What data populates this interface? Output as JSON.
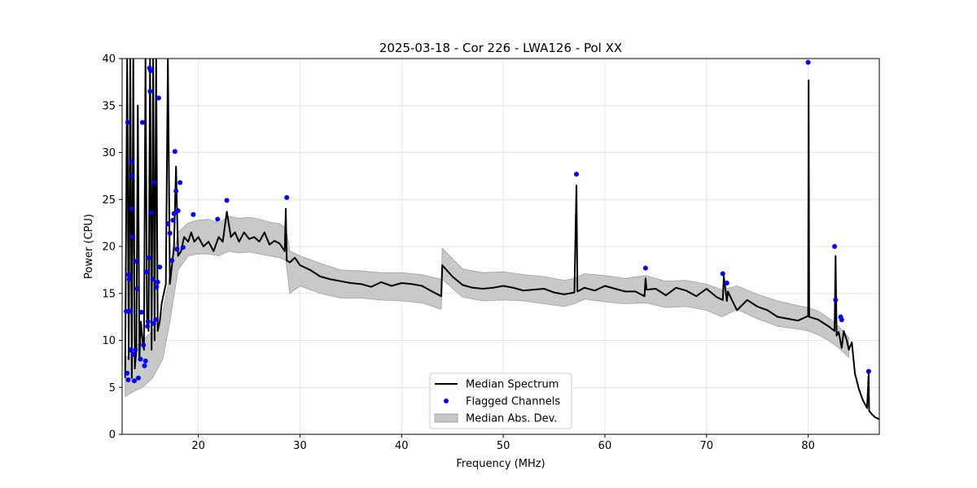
{
  "chart_data": {
    "type": "line",
    "title": "2025-03-18 - Cor 226 - LWA126 - Pol XX",
    "xlabel": "Frequency (MHz)",
    "ylabel": "Power (CPU)",
    "xlim": [
      12.5,
      87.0
    ],
    "ylim": [
      0,
      40
    ],
    "xticks": [
      20,
      30,
      40,
      50,
      60,
      70,
      80
    ],
    "yticks": [
      0,
      5,
      10,
      15,
      20,
      25,
      30,
      35,
      40
    ],
    "grid": true,
    "legend_position": "bottom-center",
    "colors": {
      "median": "#000000",
      "flagged": "#0000ff",
      "mad": "#c8c8c8",
      "mad_edge": "#a0a0a0"
    },
    "series": [
      {
        "name": "Median Spectrum",
        "kind": "line",
        "x": [
          12.8,
          13.0,
          13.15,
          13.3,
          13.45,
          13.6,
          13.75,
          13.9,
          14.05,
          14.2,
          14.35,
          14.5,
          14.65,
          14.8,
          14.95,
          15.1,
          15.25,
          15.4,
          15.55,
          15.7,
          15.85,
          16.0,
          16.2,
          16.4,
          16.6,
          16.8,
          17.0,
          17.2,
          17.4,
          17.6,
          17.8,
          18.0,
          18.3,
          18.6,
          19.0,
          19.3,
          19.6,
          20.0,
          20.5,
          21.0,
          21.5,
          22.0,
          22.4,
          22.8,
          23.2,
          23.6,
          24.0,
          24.5,
          25.0,
          25.5,
          26.0,
          26.5,
          27.0,
          27.5,
          28.0,
          28.5,
          28.6,
          28.7,
          29.0,
          29.5,
          30.0,
          31.0,
          32.0,
          33.0,
          34.0,
          35.0,
          36.0,
          37.0,
          38.0,
          39.0,
          40.0,
          41.0,
          42.0,
          43.0,
          43.9,
          44.0,
          45.0,
          46.0,
          47.0,
          48.0,
          49.0,
          50.0,
          51.0,
          52.0,
          53.0,
          54.0,
          55.0,
          56.0,
          57.0,
          57.2,
          57.3,
          58.0,
          59.0,
          60.0,
          61.0,
          62.0,
          63.0,
          63.9,
          64.0,
          64.1,
          65.0,
          66.0,
          67.0,
          68.0,
          69.0,
          70.0,
          71.0,
          71.6,
          71.7,
          72.0,
          72.1,
          73.0,
          74.0,
          75.0,
          76.0,
          77.0,
          78.0,
          79.0,
          80.0,
          80.05,
          80.1,
          81.0,
          82.0,
          82.6,
          82.7,
          82.8,
          83.0,
          83.3,
          83.5,
          83.8,
          84.0,
          84.3,
          84.6,
          85.0,
          85.4,
          85.8,
          85.95,
          86.0,
          86.3,
          86.6,
          87.0
        ],
        "y": [
          6,
          40,
          8,
          40,
          6,
          40,
          7,
          9,
          35,
          8,
          12,
          10,
          9,
          40,
          12,
          11,
          40,
          9,
          40,
          10,
          40,
          11,
          12,
          14,
          15,
          16,
          40,
          16,
          18,
          20,
          28.5,
          19,
          19.5,
          21,
          20.5,
          21.5,
          20.5,
          21,
          20,
          20.5,
          19.5,
          21,
          20.5,
          23.7,
          21,
          21.5,
          20.5,
          21.5,
          20.8,
          21,
          20.5,
          21.5,
          20.2,
          20.6,
          20.3,
          19.5,
          24,
          18.5,
          18.3,
          18.8,
          18,
          17.5,
          16.8,
          16.5,
          16.3,
          16.1,
          16,
          15.7,
          16.2,
          15.8,
          16.1,
          16,
          15.8,
          15.2,
          14.7,
          18,
          16.8,
          15.9,
          15.6,
          15.5,
          15.6,
          15.8,
          15.6,
          15.3,
          15.4,
          15.5,
          15.1,
          14.9,
          15.1,
          26.5,
          15.2,
          15.6,
          15.3,
          15.8,
          15.5,
          15.2,
          15.2,
          14.7,
          16.6,
          15.4,
          15.5,
          14.8,
          15.6,
          15.3,
          14.7,
          15.5,
          14.6,
          14.3,
          16.8,
          14.2,
          15.2,
          13.2,
          14.3,
          13.6,
          13.2,
          12.5,
          12.3,
          12.1,
          12.6,
          37.7,
          12.5,
          12.2,
          11.5,
          11.0,
          19.0,
          10.5,
          10.9,
          9.2,
          11.0,
          10.0,
          9.0,
          9.8,
          6.5,
          4.8,
          3.6,
          2.8,
          6.5,
          2.5,
          2.1,
          1.8,
          1.6
        ]
      },
      {
        "name": "Median Abs. Dev.",
        "kind": "band",
        "x": [
          12.8,
          13.5,
          14.5,
          15.5,
          16.5,
          17.2,
          18.0,
          19.0,
          20.0,
          21.0,
          22.0,
          23.0,
          24.0,
          25.0,
          26.0,
          27.0,
          28.0,
          28.6,
          29.0,
          30.0,
          32.0,
          34.0,
          36.0,
          38.0,
          40.0,
          42.0,
          43.9,
          44.0,
          46.0,
          48.0,
          50.0,
          52.0,
          54.0,
          56.0,
          57.0,
          58.0,
          60.0,
          62.0,
          64.0,
          66.0,
          68.0,
          70.0,
          71.5,
          73.0,
          75.0,
          77.0,
          79.0,
          80.0,
          81.0,
          82.0,
          83.0,
          84.0
        ],
        "lower": [
          4,
          4.5,
          5,
          6,
          8,
          12,
          17.5,
          19,
          19.2,
          19.2,
          19,
          19.5,
          19.3,
          19.4,
          19.2,
          19,
          18.8,
          18.5,
          15,
          15.8,
          15,
          14.5,
          14.5,
          14.3,
          14.2,
          14,
          13.3,
          16.5,
          14.6,
          14.2,
          14.3,
          14.2,
          13.9,
          13.6,
          13.9,
          14.4,
          14.1,
          13.9,
          14,
          13.5,
          13.6,
          13.2,
          12.5,
          13.3,
          12.3,
          11.5,
          11.2,
          11,
          10.6,
          10,
          9.2,
          8.2
        ],
        "upper": [
          8,
          9,
          10,
          11,
          13,
          17,
          21.5,
          22.5,
          22.8,
          22.9,
          22.5,
          23.2,
          23,
          23.1,
          22.9,
          22.6,
          22.4,
          22,
          19.5,
          19,
          18.2,
          17.5,
          17.4,
          17.2,
          17.2,
          17,
          16.5,
          19.8,
          17.6,
          17.2,
          17.3,
          17,
          16.8,
          16.4,
          16.6,
          17.1,
          16.9,
          16.6,
          16.9,
          16.3,
          16.4,
          16,
          15.4,
          15.8,
          14.9,
          14.2,
          13.7,
          13.5,
          13.1,
          12.4,
          11.5,
          10.3
        ]
      },
      {
        "name": "Flagged Channels",
        "kind": "scatter",
        "x": [
          12.9,
          13.0,
          13.05,
          13.1,
          13.15,
          13.2,
          13.3,
          13.35,
          13.4,
          13.45,
          13.5,
          13.55,
          13.6,
          13.7,
          13.8,
          13.9,
          14.0,
          14.1,
          14.3,
          14.4,
          14.5,
          14.6,
          14.7,
          14.8,
          14.9,
          15.0,
          15.05,
          15.1,
          15.2,
          15.25,
          15.3,
          15.4,
          15.5,
          15.6,
          15.7,
          15.8,
          15.9,
          16.0,
          16.1,
          16.2,
          17.0,
          17.2,
          17.4,
          17.5,
          17.6,
          17.7,
          17.8,
          17.9,
          18.0,
          18.2,
          18.5,
          19.5,
          21.9,
          22.8,
          28.7,
          57.2,
          64.0,
          71.6,
          72.0,
          80.0,
          82.6,
          82.7,
          83.2,
          83.3,
          85.95
        ],
        "y": [
          13.1,
          6.5,
          33.2,
          5.8,
          17,
          16.5,
          9,
          13.1,
          29,
          24,
          27.5,
          21,
          8.5,
          5.7,
          9,
          18.4,
          15.5,
          6,
          8,
          13,
          33.2,
          9.5,
          7.3,
          7.8,
          17.3,
          11.5,
          12,
          18.8,
          39,
          36.5,
          38.7,
          23.6,
          16.5,
          11.8,
          26.8,
          12.2,
          15.7,
          16.2,
          35.8,
          17.8,
          22.4,
          21.4,
          18.5,
          22.8,
          23.5,
          30.1,
          25.9,
          19.7,
          23.8,
          26.8,
          19.9,
          23.4,
          22.9,
          24.9,
          25.2,
          27.7,
          17.7,
          17.1,
          16.1,
          39.6,
          20,
          14.3,
          12.5,
          12.2,
          6.7
        ]
      }
    ]
  }
}
